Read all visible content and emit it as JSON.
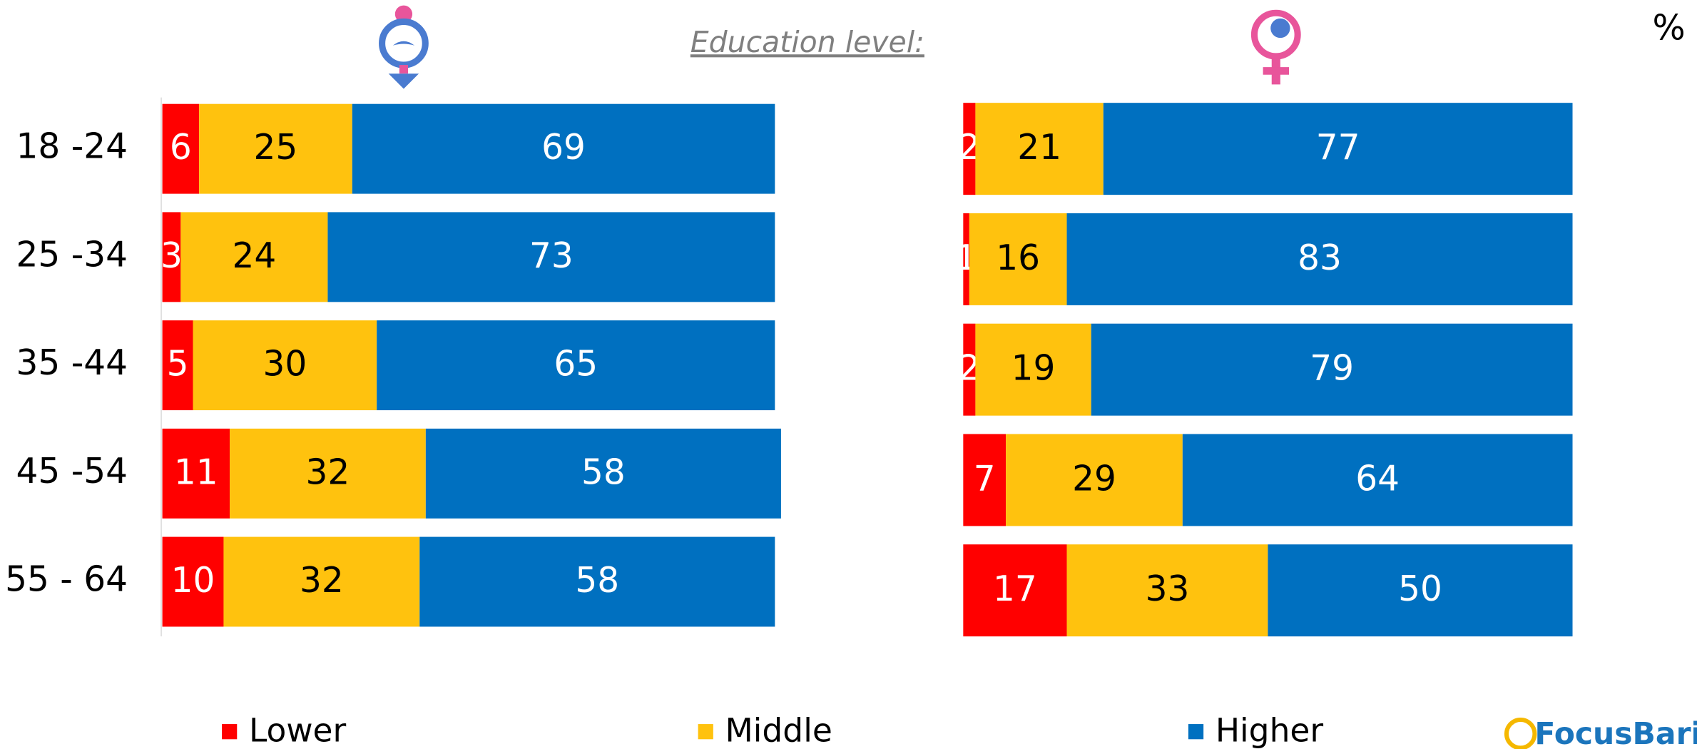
{
  "title": "Education level:",
  "unit": "%",
  "logo": "FocusBari",
  "chart_data": [
    {
      "type": "bar",
      "orientation": "horizontal",
      "stacked": true,
      "categories": [
        "18 -24",
        "25 -34",
        "35 -44",
        "45 -54",
        "55 - 64"
      ],
      "xlim": [
        0,
        100
      ],
      "series": [
        {
          "name": "Lower",
          "color": "#ff0000",
          "values": [
            6,
            3,
            5,
            11,
            10
          ]
        },
        {
          "name": "Middle",
          "color": "#ffc20e",
          "values": [
            25,
            24,
            30,
            32,
            32
          ]
        },
        {
          "name": "Higher",
          "color": "#0070c0",
          "values": [
            69,
            73,
            65,
            58,
            58
          ]
        }
      ]
    },
    {
      "type": "bar",
      "orientation": "horizontal",
      "stacked": true,
      "xlim": [
        0,
        100
      ],
      "series": [
        {
          "color": "#ff0000",
          "values": [
            2,
            1,
            2,
            7,
            17
          ]
        },
        {
          "color": "#ffc20e",
          "values": [
            21,
            16,
            19,
            29,
            33
          ]
        },
        {
          "color": "#0070c0",
          "values": [
            77,
            83,
            79,
            64,
            50
          ]
        }
      ]
    }
  ]
}
